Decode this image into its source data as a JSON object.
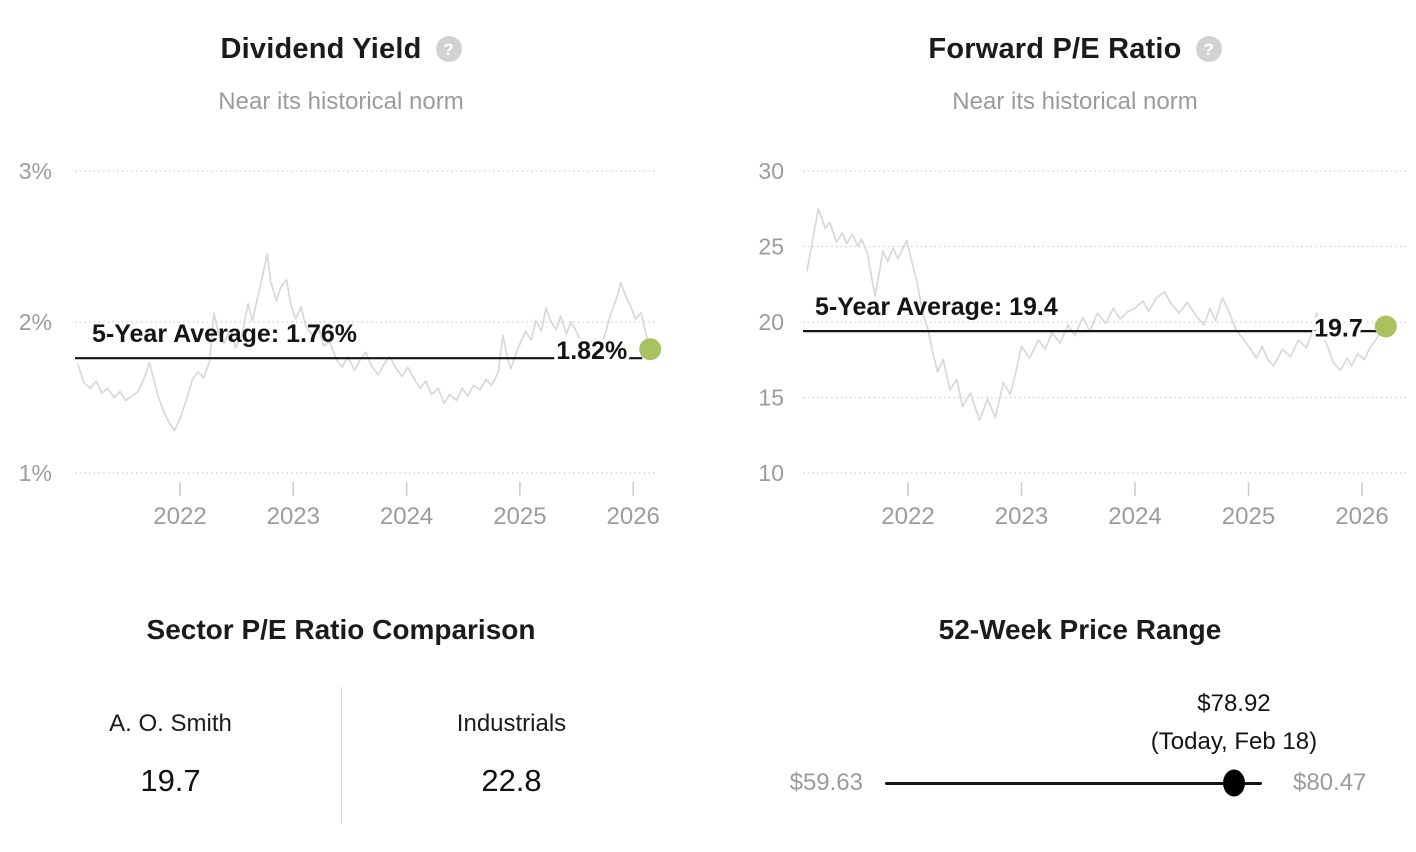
{
  "icons": {
    "help_glyph": "?"
  },
  "colors": {
    "accent_dot": "#a8c260",
    "series_line": "#d8d8d8",
    "average_line": "#141414",
    "muted_text": "#9b9b9b"
  },
  "chart_data": [
    {
      "id": "dividend-yield",
      "type": "line",
      "title": "Dividend Yield",
      "subtitle": "Near its historical norm",
      "legend_position": "none",
      "grid": "horizontal-dotted",
      "xlim": [
        2021.1,
        2026.2
      ],
      "ylim": [
        1,
        3
      ],
      "x_ticks": [
        2022,
        2023,
        2024,
        2025,
        2026
      ],
      "y_ticks": [
        {
          "value": 3,
          "label": "3%"
        },
        {
          "value": 2,
          "label": "2%"
        },
        {
          "value": 1,
          "label": "1%"
        }
      ],
      "average": {
        "label": "5-Year Average: 1.76%",
        "value": 1.76
      },
      "current": {
        "label": "1.82%",
        "value": 1.82
      },
      "x": [
        2021.1,
        2021.15,
        2021.21,
        2021.26,
        2021.31,
        2021.36,
        2021.42,
        2021.47,
        2021.52,
        2021.58,
        2021.63,
        2021.68,
        2021.73,
        2021.77,
        2021.81,
        2021.86,
        2021.9,
        2021.95,
        2022.0,
        2022.05,
        2022.11,
        2022.16,
        2022.21,
        2022.26,
        2022.3,
        2022.34,
        2022.39,
        2022.44,
        2022.49,
        2022.55,
        2022.6,
        2022.64,
        2022.69,
        2022.73,
        2022.77,
        2022.8,
        2022.85,
        2022.89,
        2022.94,
        2022.98,
        2023.02,
        2023.07,
        2023.11,
        2023.17,
        2023.22,
        2023.27,
        2023.32,
        2023.38,
        2023.43,
        2023.48,
        2023.54,
        2023.59,
        2023.64,
        2023.69,
        2023.75,
        2023.8,
        2023.85,
        2023.91,
        2023.96,
        2024.01,
        2024.07,
        2024.12,
        2024.17,
        2024.22,
        2024.28,
        2024.33,
        2024.38,
        2024.44,
        2024.49,
        2024.54,
        2024.59,
        2024.65,
        2024.7,
        2024.75,
        2024.81,
        2024.85,
        2024.89,
        2024.92,
        2024.97,
        2025.01,
        2025.05,
        2025.1,
        2025.14,
        2025.19,
        2025.23,
        2025.27,
        2025.32,
        2025.36,
        2025.41,
        2025.45,
        2025.49,
        2025.54,
        2025.58,
        2025.63,
        2025.67,
        2025.72,
        2025.76,
        2025.8,
        2025.85,
        2025.89,
        2025.94,
        2025.98,
        2026.02,
        2026.07,
        2026.11,
        2026.15
      ],
      "y": [
        1.72,
        1.6,
        1.56,
        1.61,
        1.53,
        1.56,
        1.5,
        1.54,
        1.48,
        1.51,
        1.54,
        1.62,
        1.73,
        1.62,
        1.5,
        1.4,
        1.34,
        1.28,
        1.36,
        1.47,
        1.62,
        1.67,
        1.63,
        1.74,
        2.06,
        1.92,
        1.86,
        1.95,
        1.83,
        1.92,
        2.12,
        2.01,
        2.18,
        2.31,
        2.45,
        2.27,
        2.14,
        2.23,
        2.28,
        2.11,
        2.02,
        2.1,
        1.97,
        1.91,
        1.97,
        1.84,
        1.87,
        1.75,
        1.7,
        1.77,
        1.68,
        1.75,
        1.8,
        1.71,
        1.65,
        1.72,
        1.77,
        1.69,
        1.64,
        1.7,
        1.62,
        1.56,
        1.61,
        1.52,
        1.56,
        1.46,
        1.52,
        1.48,
        1.56,
        1.51,
        1.58,
        1.55,
        1.62,
        1.58,
        1.67,
        1.91,
        1.76,
        1.69,
        1.8,
        1.87,
        1.94,
        1.88,
        2.01,
        1.94,
        2.09,
        2.01,
        1.95,
        2.04,
        1.92,
        2.0,
        1.95,
        1.87,
        1.8,
        1.74,
        1.78,
        1.85,
        1.94,
        2.05,
        2.15,
        2.26,
        2.16,
        2.1,
        2.02,
        2.06,
        1.93,
        1.82
      ]
    },
    {
      "id": "forward-pe-ratio",
      "type": "line",
      "title": "Forward P/E Ratio",
      "subtitle": "Near its historical norm",
      "legend_position": "none",
      "grid": "horizontal-dotted",
      "xlim": [
        2021.1,
        2026.2
      ],
      "ylim": [
        10,
        30
      ],
      "x_ticks": [
        2022,
        2023,
        2024,
        2025,
        2026
      ],
      "y_ticks": [
        {
          "value": 30,
          "label": "30"
        },
        {
          "value": 25,
          "label": "25"
        },
        {
          "value": 20,
          "label": "20"
        },
        {
          "value": 15,
          "label": "15"
        },
        {
          "value": 10,
          "label": "10"
        }
      ],
      "average": {
        "label": "5-Year Average: 19.4",
        "value": 19.4
      },
      "current": {
        "label": "19.7",
        "value": 19.7
      },
      "x": [
        2021.11,
        2021.15,
        2021.21,
        2021.24,
        2021.27,
        2021.31,
        2021.37,
        2021.42,
        2021.46,
        2021.51,
        2021.56,
        2021.59,
        2021.64,
        2021.71,
        2021.78,
        2021.82,
        2021.87,
        2021.91,
        2021.99,
        2022.04,
        2022.08,
        2022.13,
        2022.18,
        2022.22,
        2022.26,
        2022.31,
        2022.37,
        2022.43,
        2022.48,
        2022.55,
        2022.63,
        2022.7,
        2022.77,
        2022.84,
        2022.9,
        2022.96,
        2023.0,
        2023.07,
        2023.15,
        2023.21,
        2023.27,
        2023.34,
        2023.41,
        2023.47,
        2023.54,
        2023.6,
        2023.67,
        2023.74,
        2023.81,
        2023.87,
        2023.94,
        2024.0,
        2024.07,
        2024.12,
        2024.19,
        2024.26,
        2024.32,
        2024.39,
        2024.46,
        2024.54,
        2024.61,
        2024.66,
        2024.71,
        2024.77,
        2024.82,
        2024.89,
        2024.96,
        2025.01,
        2025.07,
        2025.12,
        2025.17,
        2025.22,
        2025.3,
        2025.37,
        2025.44,
        2025.51,
        2025.56,
        2025.6,
        2025.65,
        2025.7,
        2025.75,
        2025.81,
        2025.87,
        2025.91,
        2025.96,
        2026.02,
        2026.07,
        2026.12,
        2026.17,
        2026.21
      ],
      "y": [
        23.4,
        25.0,
        27.5,
        26.9,
        26.2,
        26.6,
        25.3,
        25.9,
        25.2,
        25.8,
        25.0,
        25.5,
        24.6,
        21.7,
        24.7,
        24.0,
        24.9,
        24.2,
        25.4,
        23.8,
        22.6,
        20.6,
        19.4,
        17.9,
        16.7,
        17.5,
        15.5,
        16.2,
        14.4,
        15.3,
        13.5,
        14.9,
        13.7,
        16.0,
        15.2,
        17.0,
        18.4,
        17.6,
        18.8,
        18.2,
        19.3,
        18.6,
        19.8,
        19.1,
        20.3,
        19.4,
        20.6,
        19.9,
        20.9,
        20.2,
        20.7,
        20.9,
        21.4,
        20.7,
        21.6,
        22.0,
        21.2,
        20.6,
        21.3,
        20.4,
        19.8,
        20.9,
        20.1,
        21.6,
        20.8,
        19.5,
        18.8,
        18.3,
        17.6,
        18.4,
        17.5,
        17.1,
        18.2,
        17.7,
        18.8,
        18.3,
        19.3,
        20.6,
        19.2,
        18.3,
        17.3,
        16.8,
        17.6,
        17.1,
        17.9,
        17.5,
        18.3,
        18.8,
        19.4,
        19.7
      ]
    },
    {
      "id": "sector-pe-comparison",
      "type": "table",
      "title": "Sector P/E Ratio Comparison",
      "columns": [
        "A. O. Smith",
        "Industrials"
      ],
      "values": [
        "19.7",
        "22.8"
      ]
    },
    {
      "id": "52-week-price-range",
      "type": "range",
      "title": "52-Week Price Range",
      "low": {
        "label": "$59.63",
        "value": 59.63
      },
      "high": {
        "label": "$80.47",
        "value": 80.47
      },
      "current": {
        "label": "$78.92",
        "sublabel": "(Today, Feb 18)",
        "value": 78.92
      }
    }
  ]
}
